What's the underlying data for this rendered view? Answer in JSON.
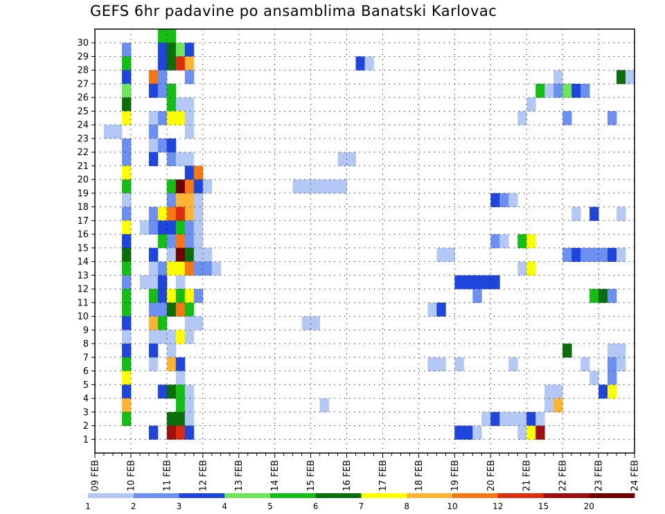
{
  "title": "GEFS 6hr padavine po ansamblima Banatski Karlovac",
  "chart_data": {
    "type": "heatmap",
    "title": "GEFS 6hr padavine po ansamblima Banatski Karlovac",
    "x_tick_labels": [
      "09 FEB",
      "10 FEB",
      "11 FEB",
      "12 FEB",
      "13 FEB",
      "14 FEB",
      "15 FEB",
      "16 FEB",
      "17 FEB",
      "18 FEB",
      "19 FEB",
      "20 FEB",
      "21 FEB",
      "22 FEB",
      "23 FEB",
      "24 FEB"
    ],
    "y_tick_labels": [
      1,
      2,
      3,
      4,
      5,
      6,
      7,
      8,
      9,
      10,
      11,
      12,
      13,
      14,
      15,
      16,
      17,
      18,
      19,
      20,
      21,
      22,
      23,
      24,
      25,
      26,
      27,
      28,
      29,
      30
    ],
    "x_step_hours": 6,
    "grid": true,
    "legend": {
      "position": "bottom",
      "labels": [
        "1",
        "2",
        "3",
        "4",
        "5",
        "6",
        "7",
        "8",
        "10",
        "12",
        "15",
        "20"
      ],
      "colors": [
        "#b4c8f5",
        "#6c8ff2",
        "#1e46dc",
        "#6ee65a",
        "#14be14",
        "#0a6e0a",
        "#ffff00",
        "#ffb432",
        "#f57814",
        "#dc2d0f",
        "#a00f0f",
        "#6e0000"
      ]
    },
    "cells_note": "Each cell: [member (row 0-30), 6h step index from 09 FEB 00 UTC, color class index 0-11]",
    "cells": [
      [
        30,
        7,
        4
      ],
      [
        30,
        8,
        4
      ],
      [
        29,
        3,
        1
      ],
      [
        29,
        7,
        2
      ],
      [
        29,
        8,
        5
      ],
      [
        29,
        9,
        3
      ],
      [
        29,
        10,
        2
      ],
      [
        28,
        3,
        4
      ],
      [
        28,
        7,
        2
      ],
      [
        28,
        8,
        5
      ],
      [
        28,
        9,
        9
      ],
      [
        28,
        10,
        7
      ],
      [
        28,
        29,
        2
      ],
      [
        28,
        30,
        0
      ],
      [
        27,
        3,
        2
      ],
      [
        27,
        6,
        8
      ],
      [
        27,
        7,
        1
      ],
      [
        27,
        10,
        1
      ],
      [
        27,
        51,
        0
      ],
      [
        27,
        58,
        5
      ],
      [
        27,
        59,
        0
      ],
      [
        26,
        3,
        3
      ],
      [
        26,
        6,
        2
      ],
      [
        26,
        7,
        1
      ],
      [
        26,
        8,
        4
      ],
      [
        26,
        49,
        4
      ],
      [
        26,
        50,
        0
      ],
      [
        26,
        51,
        1
      ],
      [
        26,
        52,
        3
      ],
      [
        26,
        53,
        2
      ],
      [
        26,
        54,
        1
      ],
      [
        25,
        3,
        5
      ],
      [
        25,
        8,
        4
      ],
      [
        25,
        9,
        0
      ],
      [
        25,
        10,
        0
      ],
      [
        25,
        48,
        0
      ],
      [
        24,
        3,
        6
      ],
      [
        24,
        6,
        0
      ],
      [
        24,
        7,
        1
      ],
      [
        24,
        8,
        6
      ],
      [
        24,
        9,
        6
      ],
      [
        24,
        10,
        0
      ],
      [
        24,
        47,
        0
      ],
      [
        24,
        52,
        1
      ],
      [
        24,
        57,
        1
      ],
      [
        23,
        1,
        0
      ],
      [
        23,
        2,
        0
      ],
      [
        23,
        6,
        1
      ],
      [
        23,
        10,
        0
      ],
      [
        22,
        3,
        1
      ],
      [
        22,
        6,
        0
      ],
      [
        22,
        7,
        1
      ],
      [
        22,
        8,
        2
      ],
      [
        21,
        3,
        1
      ],
      [
        21,
        6,
        2
      ],
      [
        21,
        8,
        1
      ],
      [
        21,
        9,
        0
      ],
      [
        21,
        10,
        0
      ],
      [
        21,
        27,
        0
      ],
      [
        21,
        28,
        0
      ],
      [
        20,
        3,
        6
      ],
      [
        20,
        10,
        2
      ],
      [
        20,
        11,
        8
      ],
      [
        19,
        3,
        4
      ],
      [
        19,
        8,
        4
      ],
      [
        19,
        9,
        11
      ],
      [
        19,
        10,
        8
      ],
      [
        19,
        11,
        2
      ],
      [
        19,
        12,
        0
      ],
      [
        19,
        22,
        0
      ],
      [
        19,
        23,
        0
      ],
      [
        19,
        24,
        0
      ],
      [
        19,
        25,
        0
      ],
      [
        19,
        26,
        0
      ],
      [
        19,
        27,
        0
      ],
      [
        18,
        3,
        0
      ],
      [
        18,
        8,
        1
      ],
      [
        18,
        9,
        7
      ],
      [
        18,
        10,
        7
      ],
      [
        18,
        11,
        0
      ],
      [
        18,
        44,
        2
      ],
      [
        18,
        45,
        1
      ],
      [
        18,
        46,
        0
      ],
      [
        17,
        3,
        1
      ],
      [
        17,
        6,
        1
      ],
      [
        17,
        7,
        6
      ],
      [
        17,
        8,
        8
      ],
      [
        17,
        9,
        9
      ],
      [
        17,
        10,
        7
      ],
      [
        17,
        11,
        0
      ],
      [
        17,
        53,
        0
      ],
      [
        17,
        55,
        2
      ],
      [
        17,
        58,
        0
      ],
      [
        16,
        3,
        6
      ],
      [
        16,
        5,
        0
      ],
      [
        16,
        6,
        1
      ],
      [
        16,
        7,
        2
      ],
      [
        16,
        8,
        2
      ],
      [
        16,
        9,
        4
      ],
      [
        16,
        10,
        1
      ],
      [
        16,
        11,
        0
      ],
      [
        15,
        3,
        2
      ],
      [
        15,
        7,
        4
      ],
      [
        15,
        8,
        1
      ],
      [
        15,
        9,
        8
      ],
      [
        15,
        10,
        1
      ],
      [
        15,
        11,
        0
      ],
      [
        15,
        44,
        1
      ],
      [
        15,
        45,
        0
      ],
      [
        15,
        47,
        4
      ],
      [
        15,
        48,
        6
      ],
      [
        14,
        3,
        5
      ],
      [
        14,
        6,
        2
      ],
      [
        14,
        8,
        0
      ],
      [
        14,
        9,
        11
      ],
      [
        14,
        10,
        5
      ],
      [
        14,
        11,
        0
      ],
      [
        14,
        12,
        0
      ],
      [
        14,
        38,
        0
      ],
      [
        14,
        39,
        0
      ],
      [
        14,
        52,
        1
      ],
      [
        14,
        53,
        2
      ],
      [
        14,
        54,
        1
      ],
      [
        14,
        55,
        1
      ],
      [
        14,
        56,
        1
      ],
      [
        14,
        57,
        2
      ],
      [
        14,
        58,
        0
      ],
      [
        13,
        3,
        4
      ],
      [
        13,
        6,
        0
      ],
      [
        13,
        7,
        1
      ],
      [
        13,
        8,
        6
      ],
      [
        13,
        9,
        6
      ],
      [
        13,
        10,
        8
      ],
      [
        13,
        11,
        1
      ],
      [
        13,
        12,
        1
      ],
      [
        13,
        13,
        0
      ],
      [
        13,
        47,
        0
      ],
      [
        13,
        48,
        6
      ],
      [
        12,
        3,
        1
      ],
      [
        12,
        5,
        0
      ],
      [
        12,
        6,
        0
      ],
      [
        12,
        7,
        2
      ],
      [
        12,
        9,
        0
      ],
      [
        12,
        40,
        2
      ],
      [
        12,
        41,
        2
      ],
      [
        12,
        42,
        2
      ],
      [
        12,
        43,
        2
      ],
      [
        12,
        44,
        2
      ],
      [
        11,
        3,
        4
      ],
      [
        11,
        6,
        4
      ],
      [
        11,
        7,
        2
      ],
      [
        11,
        8,
        6
      ],
      [
        11,
        9,
        4
      ],
      [
        11,
        10,
        6
      ],
      [
        11,
        11,
        1
      ],
      [
        11,
        42,
        1
      ],
      [
        11,
        55,
        4
      ],
      [
        11,
        56,
        5
      ],
      [
        11,
        57,
        1
      ],
      [
        10,
        3,
        4
      ],
      [
        10,
        6,
        1
      ],
      [
        10,
        7,
        1
      ],
      [
        10,
        8,
        5
      ],
      [
        10,
        9,
        8
      ],
      [
        10,
        10,
        4
      ],
      [
        10,
        37,
        0
      ],
      [
        10,
        38,
        2
      ],
      [
        9,
        3,
        2
      ],
      [
        9,
        6,
        7
      ],
      [
        9,
        7,
        4
      ],
      [
        9,
        10,
        0
      ],
      [
        9,
        11,
        0
      ],
      [
        9,
        23,
        0
      ],
      [
        9,
        24,
        0
      ],
      [
        8,
        3,
        0
      ],
      [
        8,
        6,
        0
      ],
      [
        8,
        7,
        0
      ],
      [
        8,
        8,
        0
      ],
      [
        8,
        9,
        6
      ],
      [
        8,
        10,
        0
      ],
      [
        7,
        3,
        2
      ],
      [
        7,
        6,
        2
      ],
      [
        7,
        8,
        0
      ],
      [
        7,
        52,
        5
      ],
      [
        7,
        57,
        0
      ],
      [
        7,
        58,
        0
      ],
      [
        6,
        3,
        4
      ],
      [
        6,
        6,
        0
      ],
      [
        6,
        8,
        7
      ],
      [
        6,
        9,
        2
      ],
      [
        6,
        37,
        0
      ],
      [
        6,
        38,
        0
      ],
      [
        6,
        40,
        0
      ],
      [
        6,
        46,
        0
      ],
      [
        6,
        54,
        0
      ],
      [
        6,
        57,
        1
      ],
      [
        6,
        58,
        0
      ],
      [
        5,
        3,
        6
      ],
      [
        5,
        9,
        0
      ],
      [
        5,
        55,
        0
      ],
      [
        5,
        57,
        1
      ],
      [
        4,
        3,
        2
      ],
      [
        4,
        7,
        2
      ],
      [
        4,
        8,
        5
      ],
      [
        4,
        9,
        4
      ],
      [
        4,
        10,
        0
      ],
      [
        4,
        50,
        0
      ],
      [
        4,
        51,
        0
      ],
      [
        4,
        56,
        2
      ],
      [
        4,
        57,
        6
      ],
      [
        3,
        3,
        7
      ],
      [
        3,
        9,
        4
      ],
      [
        3,
        10,
        0
      ],
      [
        3,
        25,
        0
      ],
      [
        3,
        50,
        0
      ],
      [
        3,
        51,
        7
      ],
      [
        2,
        3,
        4
      ],
      [
        2,
        8,
        5
      ],
      [
        2,
        9,
        5
      ],
      [
        2,
        10,
        0
      ],
      [
        2,
        43,
        0
      ],
      [
        2,
        44,
        2
      ],
      [
        2,
        45,
        0
      ],
      [
        2,
        46,
        0
      ],
      [
        2,
        47,
        0
      ],
      [
        2,
        48,
        2
      ],
      [
        2,
        49,
        0
      ],
      [
        1,
        6,
        2
      ],
      [
        1,
        8,
        10
      ],
      [
        1,
        9,
        9
      ],
      [
        1,
        10,
        2
      ],
      [
        1,
        40,
        2
      ],
      [
        1,
        41,
        2
      ],
      [
        1,
        42,
        0
      ],
      [
        1,
        47,
        0
      ],
      [
        1,
        48,
        6
      ],
      [
        1,
        49,
        10
      ]
    ]
  }
}
